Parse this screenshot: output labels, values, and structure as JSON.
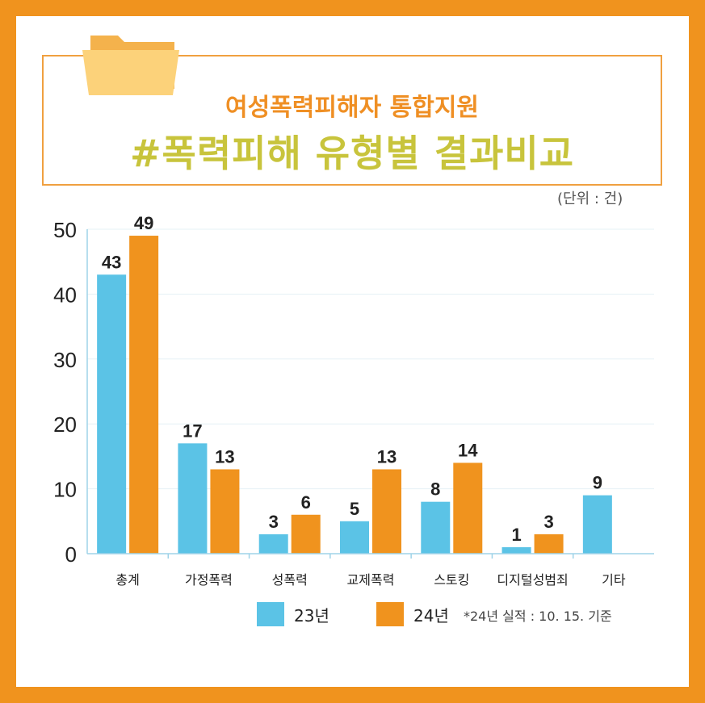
{
  "header": {
    "subtitle": "여성폭력피해자 통합지원",
    "title": "#폭력피해 유형별 결과비교"
  },
  "unit_label": "(단위 : 건)",
  "footnote": "*24년 실적 : 10. 15. 기준",
  "colors": {
    "frame": "#f0931e",
    "series_23": "#5bc3e6",
    "series_24": "#f0931e",
    "subtitle": "#ef8f24",
    "title": "#c8c43c"
  },
  "icons": [
    "folder-icon"
  ],
  "chart_data": {
    "type": "bar",
    "categories": [
      "총계",
      "가정폭력",
      "성폭력",
      "교제폭력",
      "스토킹",
      "디지털성범죄",
      "기타"
    ],
    "series": [
      {
        "name": "23년",
        "values": [
          43,
          17,
          3,
          5,
          8,
          1,
          9
        ]
      },
      {
        "name": "24년",
        "values": [
          49,
          13,
          6,
          13,
          14,
          3,
          null
        ]
      }
    ],
    "yticks": [
      "0",
      "10",
      "20",
      "30",
      "40",
      "50"
    ],
    "ylim": [
      0,
      50
    ],
    "grid": true,
    "legend": "bottom"
  }
}
